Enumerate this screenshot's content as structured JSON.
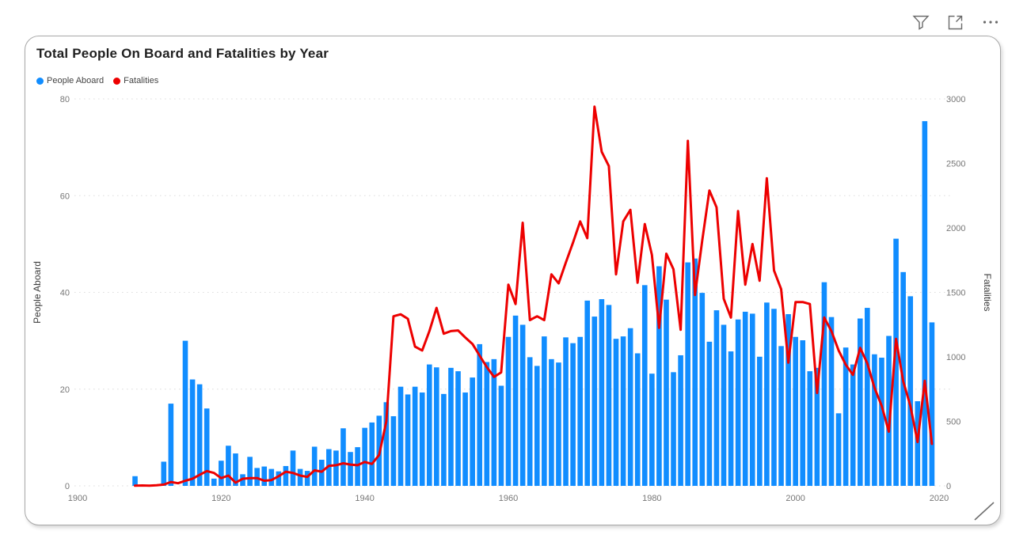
{
  "header": {
    "filter_icon": "filter-funnel",
    "focus_icon": "open-in-focus-mode",
    "more_icon": "more-options"
  },
  "card": {
    "title": "Total People On Board and Fatalities by Year",
    "legend": [
      {
        "label": "People Aboard",
        "color": "#118DFF"
      },
      {
        "label": "Fatalities",
        "color": "#ED0000"
      }
    ]
  },
  "chart_data": {
    "type": "bar",
    "subtype": "dual-axis column + line",
    "title": "Total People On Board and Fatalities by Year",
    "xlabel": "",
    "x_axis": {
      "range": [
        1900,
        2020
      ],
      "ticks": [
        1900,
        1920,
        1940,
        1960,
        1980,
        2000,
        2020
      ]
    },
    "left_axis": {
      "title": "People Aboard",
      "range": [
        0,
        80
      ],
      "ticks": [
        0,
        20,
        40,
        60,
        80
      ]
    },
    "right_axis": {
      "title": "Fatalities",
      "range": [
        0,
        3000
      ],
      "ticks": [
        0,
        500,
        1000,
        1500,
        2000,
        2500,
        3000
      ]
    },
    "grid": {
      "horizontal": "dotted",
      "color": "#dedede"
    },
    "legend_position": "top-left",
    "series": [
      {
        "name": "People Aboard",
        "type": "bar",
        "axis": "left",
        "color": "#118DFF",
        "points": [
          [
            1908,
            2
          ],
          [
            1912,
            5
          ],
          [
            1913,
            17
          ],
          [
            1915,
            30
          ],
          [
            1916,
            22
          ],
          [
            1917,
            21
          ],
          [
            1918,
            16
          ],
          [
            1919,
            1.5
          ],
          [
            1920,
            5.2
          ],
          [
            1921,
            8.3
          ],
          [
            1922,
            6.7
          ],
          [
            1923,
            2.4
          ],
          [
            1924,
            6
          ],
          [
            1925,
            3.7
          ],
          [
            1926,
            4
          ],
          [
            1927,
            3.5
          ],
          [
            1928,
            3
          ],
          [
            1929,
            4.1
          ],
          [
            1930,
            7.3
          ],
          [
            1931,
            3.5
          ],
          [
            1932,
            3.1
          ],
          [
            1933,
            8.1
          ],
          [
            1934,
            5.4
          ],
          [
            1935,
            7.6
          ],
          [
            1936,
            7.3
          ],
          [
            1937,
            11.9
          ],
          [
            1938,
            7
          ],
          [
            1939,
            8
          ],
          [
            1940,
            12
          ],
          [
            1941,
            13.1
          ],
          [
            1942,
            14.5
          ],
          [
            1943,
            17.3
          ],
          [
            1944,
            14.4
          ],
          [
            1945,
            20.5
          ],
          [
            1946,
            18.9
          ],
          [
            1947,
            20.5
          ],
          [
            1948,
            19.3
          ],
          [
            1949,
            25.1
          ],
          [
            1950,
            24.5
          ],
          [
            1951,
            19
          ],
          [
            1952,
            24.4
          ],
          [
            1953,
            23.7
          ],
          [
            1954,
            19.3
          ],
          [
            1955,
            22.4
          ],
          [
            1956,
            29.3
          ],
          [
            1957,
            25.6
          ],
          [
            1958,
            26.2
          ],
          [
            1959,
            20.7
          ],
          [
            1960,
            30.8
          ],
          [
            1961,
            35.2
          ],
          [
            1962,
            33.3
          ],
          [
            1963,
            26.6
          ],
          [
            1964,
            24.8
          ],
          [
            1965,
            30.9
          ],
          [
            1966,
            26.2
          ],
          [
            1967,
            25.5
          ],
          [
            1968,
            30.7
          ],
          [
            1969,
            29.5
          ],
          [
            1970,
            30.8
          ],
          [
            1971,
            38.3
          ],
          [
            1972,
            35
          ],
          [
            1973,
            38.6
          ],
          [
            1974,
            37.4
          ],
          [
            1975,
            30.4
          ],
          [
            1976,
            30.9
          ],
          [
            1977,
            32.6
          ],
          [
            1978,
            27.4
          ],
          [
            1979,
            41.5
          ],
          [
            1980,
            23.2
          ],
          [
            1981,
            45.4
          ],
          [
            1982,
            38.5
          ],
          [
            1983,
            23.5
          ],
          [
            1984,
            27
          ],
          [
            1985,
            46.2
          ],
          [
            1986,
            47
          ],
          [
            1987,
            39.9
          ],
          [
            1988,
            29.8
          ],
          [
            1989,
            36.3
          ],
          [
            1990,
            33.3
          ],
          [
            1991,
            27.8
          ],
          [
            1992,
            34.4
          ],
          [
            1993,
            36
          ],
          [
            1994,
            35.6
          ],
          [
            1995,
            26.7
          ],
          [
            1996,
            37.9
          ],
          [
            1997,
            36.6
          ],
          [
            1998,
            28.9
          ],
          [
            1999,
            35.5
          ],
          [
            2000,
            30.8
          ],
          [
            2001,
            30.1
          ],
          [
            2002,
            23.7
          ],
          [
            2003,
            24.4
          ],
          [
            2004,
            42.1
          ],
          [
            2005,
            34.9
          ],
          [
            2006,
            15
          ],
          [
            2007,
            28.6
          ],
          [
            2008,
            25.1
          ],
          [
            2009,
            34.6
          ],
          [
            2010,
            36.8
          ],
          [
            2011,
            27.2
          ],
          [
            2012,
            26.5
          ],
          [
            2013,
            31
          ],
          [
            2014,
            51.1
          ],
          [
            2015,
            44.2
          ],
          [
            2016,
            39.2
          ],
          [
            2017,
            17.5
          ],
          [
            2018,
            75.4
          ],
          [
            2019,
            33.8
          ]
        ]
      },
      {
        "name": "Fatalities",
        "type": "line",
        "axis": "right",
        "color": "#ED0000",
        "points": [
          [
            1908,
            1
          ],
          [
            1909,
            3
          ],
          [
            1910,
            2
          ],
          [
            1911,
            5
          ],
          [
            1912,
            10
          ],
          [
            1913,
            30
          ],
          [
            1914,
            20
          ],
          [
            1915,
            40
          ],
          [
            1916,
            55
          ],
          [
            1917,
            85
          ],
          [
            1918,
            115
          ],
          [
            1919,
            100
          ],
          [
            1920,
            60
          ],
          [
            1921,
            80
          ],
          [
            1922,
            25
          ],
          [
            1923,
            55
          ],
          [
            1924,
            60
          ],
          [
            1925,
            60
          ],
          [
            1926,
            40
          ],
          [
            1927,
            45
          ],
          [
            1928,
            75
          ],
          [
            1929,
            110
          ],
          [
            1930,
            100
          ],
          [
            1931,
            80
          ],
          [
            1932,
            70
          ],
          [
            1933,
            120
          ],
          [
            1934,
            110
          ],
          [
            1935,
            155
          ],
          [
            1936,
            160
          ],
          [
            1937,
            175
          ],
          [
            1938,
            165
          ],
          [
            1939,
            160
          ],
          [
            1940,
            185
          ],
          [
            1941,
            170
          ],
          [
            1942,
            240
          ],
          [
            1943,
            500
          ],
          [
            1944,
            1315
          ],
          [
            1945,
            1330
          ],
          [
            1946,
            1295
          ],
          [
            1947,
            1080
          ],
          [
            1948,
            1050
          ],
          [
            1949,
            1200
          ],
          [
            1950,
            1380
          ],
          [
            1951,
            1180
          ],
          [
            1952,
            1200
          ],
          [
            1953,
            1205
          ],
          [
            1954,
            1150
          ],
          [
            1955,
            1100
          ],
          [
            1956,
            1010
          ],
          [
            1957,
            920
          ],
          [
            1958,
            845
          ],
          [
            1959,
            880
          ],
          [
            1960,
            1560
          ],
          [
            1961,
            1410
          ],
          [
            1962,
            2040
          ],
          [
            1963,
            1285
          ],
          [
            1964,
            1315
          ],
          [
            1965,
            1285
          ],
          [
            1966,
            1640
          ],
          [
            1967,
            1570
          ],
          [
            1968,
            1730
          ],
          [
            1969,
            1885
          ],
          [
            1970,
            2050
          ],
          [
            1971,
            1920
          ],
          [
            1972,
            2940
          ],
          [
            1973,
            2590
          ],
          [
            1974,
            2480
          ],
          [
            1975,
            1640
          ],
          [
            1976,
            2050
          ],
          [
            1977,
            2140
          ],
          [
            1978,
            1575
          ],
          [
            1979,
            2030
          ],
          [
            1980,
            1790
          ],
          [
            1981,
            1225
          ],
          [
            1982,
            1800
          ],
          [
            1983,
            1680
          ],
          [
            1984,
            1210
          ],
          [
            1985,
            2675
          ],
          [
            1986,
            1480
          ],
          [
            1987,
            1900
          ],
          [
            1988,
            2290
          ],
          [
            1989,
            2160
          ],
          [
            1990,
            1450
          ],
          [
            1991,
            1305
          ],
          [
            1992,
            2130
          ],
          [
            1993,
            1560
          ],
          [
            1994,
            1875
          ],
          [
            1995,
            1590
          ],
          [
            1996,
            2385
          ],
          [
            1997,
            1670
          ],
          [
            1998,
            1525
          ],
          [
            1999,
            955
          ],
          [
            2000,
            1425
          ],
          [
            2001,
            1425
          ],
          [
            2002,
            1410
          ],
          [
            2003,
            720
          ],
          [
            2004,
            1305
          ],
          [
            2005,
            1200
          ],
          [
            2006,
            1050
          ],
          [
            2007,
            940
          ],
          [
            2008,
            860
          ],
          [
            2009,
            1070
          ],
          [
            2010,
            950
          ],
          [
            2011,
            760
          ],
          [
            2012,
            620
          ],
          [
            2013,
            420
          ],
          [
            2014,
            1140
          ],
          [
            2015,
            810
          ],
          [
            2016,
            620
          ],
          [
            2017,
            340
          ],
          [
            2018,
            815
          ],
          [
            2019,
            325
          ]
        ]
      }
    ]
  }
}
